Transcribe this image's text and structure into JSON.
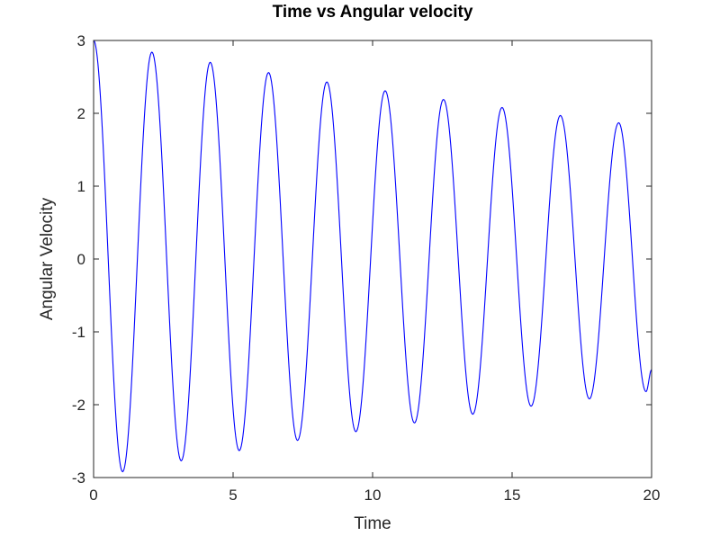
{
  "chart_data": {
    "type": "line",
    "title": "Time vs Angular velocity",
    "xlabel": "Time",
    "ylabel": "Angular Velocity",
    "xlim": [
      0,
      20
    ],
    "ylim": [
      -3,
      3
    ],
    "xticks": [
      0,
      5,
      10,
      15,
      20
    ],
    "xtick_labels": [
      "0",
      "5",
      "10",
      "15",
      "20"
    ],
    "yticks": [
      -3,
      -2,
      -1,
      0,
      1,
      2,
      3
    ],
    "ytick_labels": [
      "-3",
      "-2",
      "-1",
      "0",
      "1",
      "2",
      "3"
    ],
    "grid": false,
    "legend": false,
    "series": [
      {
        "color": "#0000ff",
        "x": [
          0,
          1.04,
          2.09,
          3.14,
          4.18,
          5.22,
          6.27,
          7.31,
          8.36,
          9.4,
          10.45,
          11.5,
          12.54,
          13.59,
          14.64,
          15.68,
          16.73,
          17.77,
          18.82,
          19.8,
          20.0
        ],
        "y": [
          3.0,
          -2.92,
          2.84,
          -2.77,
          2.7,
          -2.63,
          2.56,
          -2.49,
          2.43,
          -2.37,
          2.31,
          -2.25,
          2.19,
          -2.13,
          2.08,
          -2.02,
          1.97,
          -1.92,
          1.87,
          -1.82,
          -1.52
        ]
      }
    ]
  }
}
